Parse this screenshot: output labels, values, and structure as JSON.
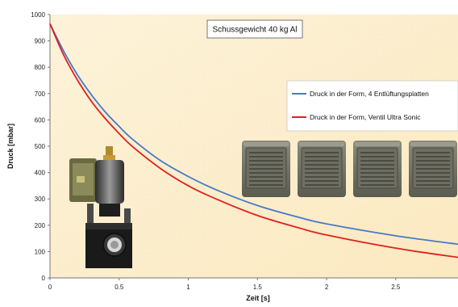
{
  "chart_data": {
    "type": "line",
    "title": "",
    "annotation": "Schussgewicht 40 kg Al",
    "xlabel": "Zeit [s]",
    "ylabel": "Druck  [mbar]",
    "xlim": [
      0,
      2.95
    ],
    "ylim": [
      0,
      1000
    ],
    "x_ticks": [
      0,
      0.5,
      1,
      1.5,
      2,
      2.5
    ],
    "x_tick_labels": [
      "0",
      "0.5",
      "1",
      "1.5",
      "2",
      "2.5"
    ],
    "y_ticks": [
      0,
      100,
      200,
      300,
      400,
      500,
      600,
      700,
      800,
      900,
      1000
    ],
    "y_tick_labels": [
      "0",
      "100",
      "200",
      "300",
      "400",
      "500",
      "600",
      "700",
      "800",
      "900",
      "1000"
    ],
    "legend_position": "right",
    "grid": false,
    "background_color": "#fdf2d6",
    "x": [
      0,
      0.1,
      0.2,
      0.3,
      0.4,
      0.5,
      0.6,
      0.8,
      1.0,
      1.2,
      1.5,
      1.8,
      2.0,
      2.5,
      2.95
    ],
    "series": [
      {
        "name": "Druck in der Form, 4 Entlüftungsplatten",
        "color": "#4a78c8",
        "values": [
          965,
          860,
          770,
          695,
          630,
          575,
          525,
          445,
          385,
          335,
          275,
          230,
          205,
          160,
          128
        ]
      },
      {
        "name": "Druck in der Form, Ventil Ultra Sonic",
        "color": "#e02020",
        "values": [
          965,
          845,
          750,
          670,
          605,
          548,
          497,
          415,
          350,
          300,
          237,
          190,
          163,
          113,
          78
        ]
      }
    ]
  },
  "images": {
    "valve": "ultra-sonic-valve-photo",
    "plates": "venting-plate-photo"
  }
}
